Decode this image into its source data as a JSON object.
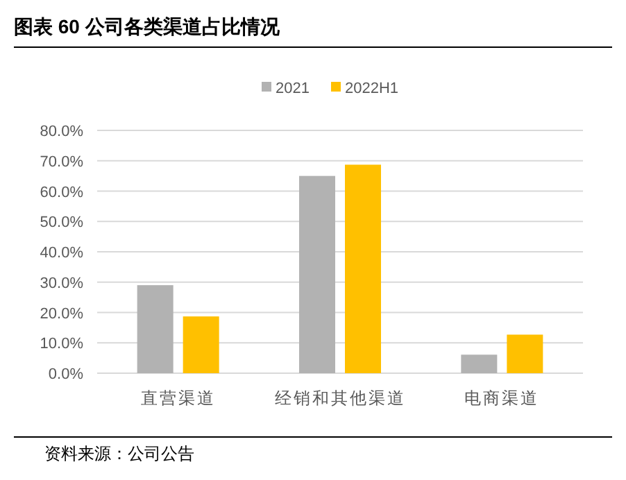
{
  "chart_data": {
    "type": "bar",
    "title": "图表 60 公司各类渠道占比情况",
    "categories": [
      "直营渠道",
      "经销和其他渠道",
      "电商渠道"
    ],
    "series": [
      {
        "name": "2021",
        "color": "#b2b2b2",
        "values": [
          29.0,
          65.0,
          6.1
        ]
      },
      {
        "name": "2022H1",
        "color": "#ffc000",
        "values": [
          18.7,
          68.7,
          12.7
        ]
      }
    ],
    "ylim": [
      0,
      80
    ],
    "yticks": [
      {
        "value": 0,
        "label": "0.0%"
      },
      {
        "value": 10,
        "label": "10.0%"
      },
      {
        "value": 20,
        "label": "20.0%"
      },
      {
        "value": 30,
        "label": "30.0%"
      },
      {
        "value": 40,
        "label": "40.0%"
      },
      {
        "value": 50,
        "label": "50.0%"
      },
      {
        "value": 60,
        "label": "60.0%"
      },
      {
        "value": 70,
        "label": "70.0%"
      },
      {
        "value": 80,
        "label": "80.0%"
      }
    ],
    "grid": "y",
    "legend": "top",
    "annotations": [
      "资料来源：公司公告"
    ]
  }
}
